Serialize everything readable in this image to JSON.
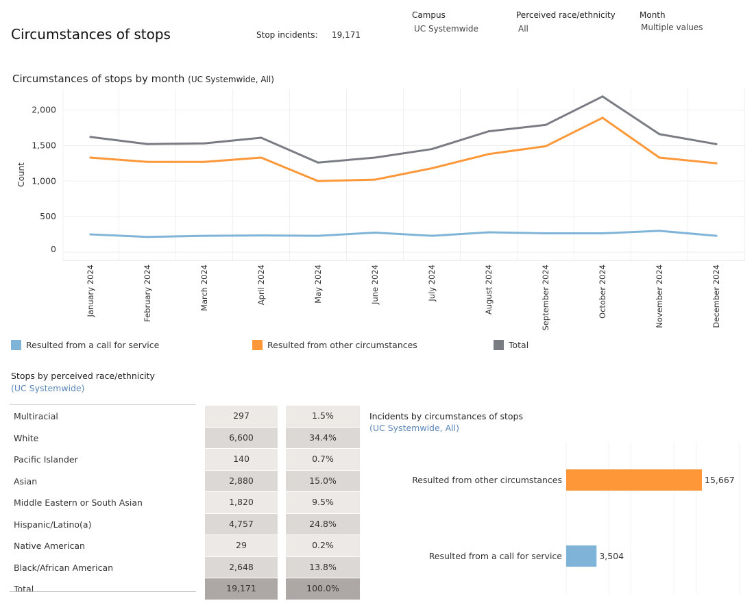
{
  "header": {
    "title": "Circumstances of stops",
    "stop_incidents_label": "Stop incidents:",
    "stop_incidents_value": "19,171"
  },
  "filters": [
    {
      "title": "Campus",
      "value": "UC Systemwide"
    },
    {
      "title": "Perceived race/ethnicity",
      "value": "All"
    },
    {
      "title": "Month",
      "value": "Multiple values"
    }
  ],
  "colors": {
    "call_for_service": "#7fb4d8",
    "other_circumstances": "#fd9738",
    "total": "#7a7c84",
    "row_odd": "#ede9e6",
    "row_even": "#dcd8d5",
    "row_total": "#ada7a5",
    "subtitle": "#5b86b8"
  },
  "chart_data": [
    {
      "type": "line",
      "title": "Circumstances of stops by month",
      "subtitle": "(UC Systemwide, All)",
      "xlabel": "",
      "ylabel": "Count",
      "ylim": [
        0,
        2200
      ],
      "yticks": [
        0,
        500,
        1000,
        1500,
        2000
      ],
      "ytick_labels": [
        "0",
        "500",
        "1,000",
        "1,500",
        "2,000"
      ],
      "categories": [
        "January 2024",
        "February 2024",
        "March 2024",
        "April 2024",
        "May 2024",
        "June 2024",
        "July 2024",
        "August 2024",
        "September 2024",
        "October 2024",
        "November 2024",
        "December 2024"
      ],
      "series": [
        {
          "name": "Resulted from a call for service",
          "color": "#7fb4d8",
          "values": [
            250,
            215,
            230,
            235,
            230,
            275,
            230,
            280,
            265,
            265,
            300,
            230
          ]
        },
        {
          "name": "Resulted from other circumstances",
          "color": "#fd9738",
          "values": [
            1330,
            1270,
            1270,
            1330,
            1000,
            1020,
            1180,
            1380,
            1490,
            1890,
            1330,
            1250
          ]
        },
        {
          "name": "Total",
          "color": "#7a7c84",
          "values": [
            1620,
            1520,
            1530,
            1610,
            1260,
            1330,
            1450,
            1700,
            1790,
            2190,
            1660,
            1520
          ]
        }
      ],
      "legend": [
        "Resulted from a call for service",
        "Resulted from other circumstances",
        "Total"
      ]
    },
    {
      "type": "table",
      "title": "Stops by perceived race/ethnicity",
      "subtitle": "(UC Systemwide)",
      "rows": [
        {
          "label": "Multiracial",
          "count": "297",
          "pct": "1.5%"
        },
        {
          "label": "White",
          "count": "6,600",
          "pct": "34.4%"
        },
        {
          "label": "Pacific Islander",
          "count": "140",
          "pct": "0.7%"
        },
        {
          "label": "Asian",
          "count": "2,880",
          "pct": "15.0%"
        },
        {
          "label": "Middle Eastern or South Asian",
          "count": "1,820",
          "pct": "9.5%"
        },
        {
          "label": "Hispanic/Latino(a)",
          "count": "4,757",
          "pct": "24.8%"
        },
        {
          "label": "Native American",
          "count": "29",
          "pct": "0.2%"
        },
        {
          "label": "Black/African American",
          "count": "2,648",
          "pct": "13.8%"
        }
      ],
      "total": {
        "label": "Total",
        "count": "19,171",
        "pct": "100.0%"
      }
    },
    {
      "type": "bar",
      "title": "Incidents by circumstances of stops",
      "subtitle": "(UC Systemwide, All)",
      "orientation": "horizontal",
      "categories": [
        "Resulted from other circumstances",
        "Resulted from a call for service"
      ],
      "values": [
        15667,
        3504
      ],
      "value_labels": [
        "15,667",
        "3,504"
      ],
      "colors": [
        "#fd9738",
        "#7fb4d8"
      ],
      "xlim": [
        0,
        16000
      ]
    }
  ]
}
